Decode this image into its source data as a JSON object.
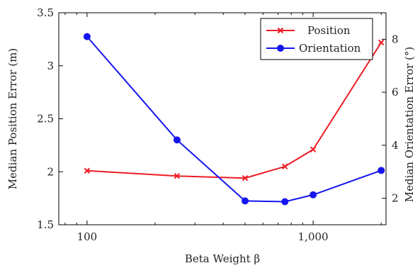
{
  "chart_data": {
    "type": "line",
    "title": "",
    "xlabel": "Beta Weight β",
    "ylabel_left": "Median Position Error (m)",
    "ylabel_right": "Median Orientation Error (°)",
    "x_scale": "log",
    "xlim": [
      75,
      2100
    ],
    "ylim_left": [
      1.5,
      3.5
    ],
    "ylim_right": [
      1,
      9
    ],
    "x_ticks": [
      100,
      1000
    ],
    "x_tick_labels": [
      "100",
      "1,000"
    ],
    "y_left_ticks": [
      1.5,
      2,
      2.5,
      3,
      3.5
    ],
    "y_left_tick_labels": [
      "1.5",
      "2",
      "2.5",
      "3",
      "3.5"
    ],
    "y_right_ticks": [
      2,
      4,
      6,
      8
    ],
    "y_right_tick_labels": [
      "2",
      "4",
      "6",
      "8"
    ],
    "legend_position": "top-right",
    "series": [
      {
        "name": "Position",
        "axis": "left",
        "color": "#ee1c24",
        "marker": "x",
        "x": [
          100,
          250,
          500,
          750,
          1000,
          2000
        ],
        "y": [
          2.01,
          1.96,
          1.94,
          2.05,
          2.21,
          3.22
        ]
      },
      {
        "name": "Orientation",
        "axis": "right",
        "color": "#1515ee",
        "marker": "circle",
        "x": [
          100,
          250,
          500,
          750,
          1000,
          2000
        ],
        "y": [
          8.1,
          4.2,
          1.9,
          1.87,
          2.13,
          3.05
        ]
      }
    ]
  }
}
